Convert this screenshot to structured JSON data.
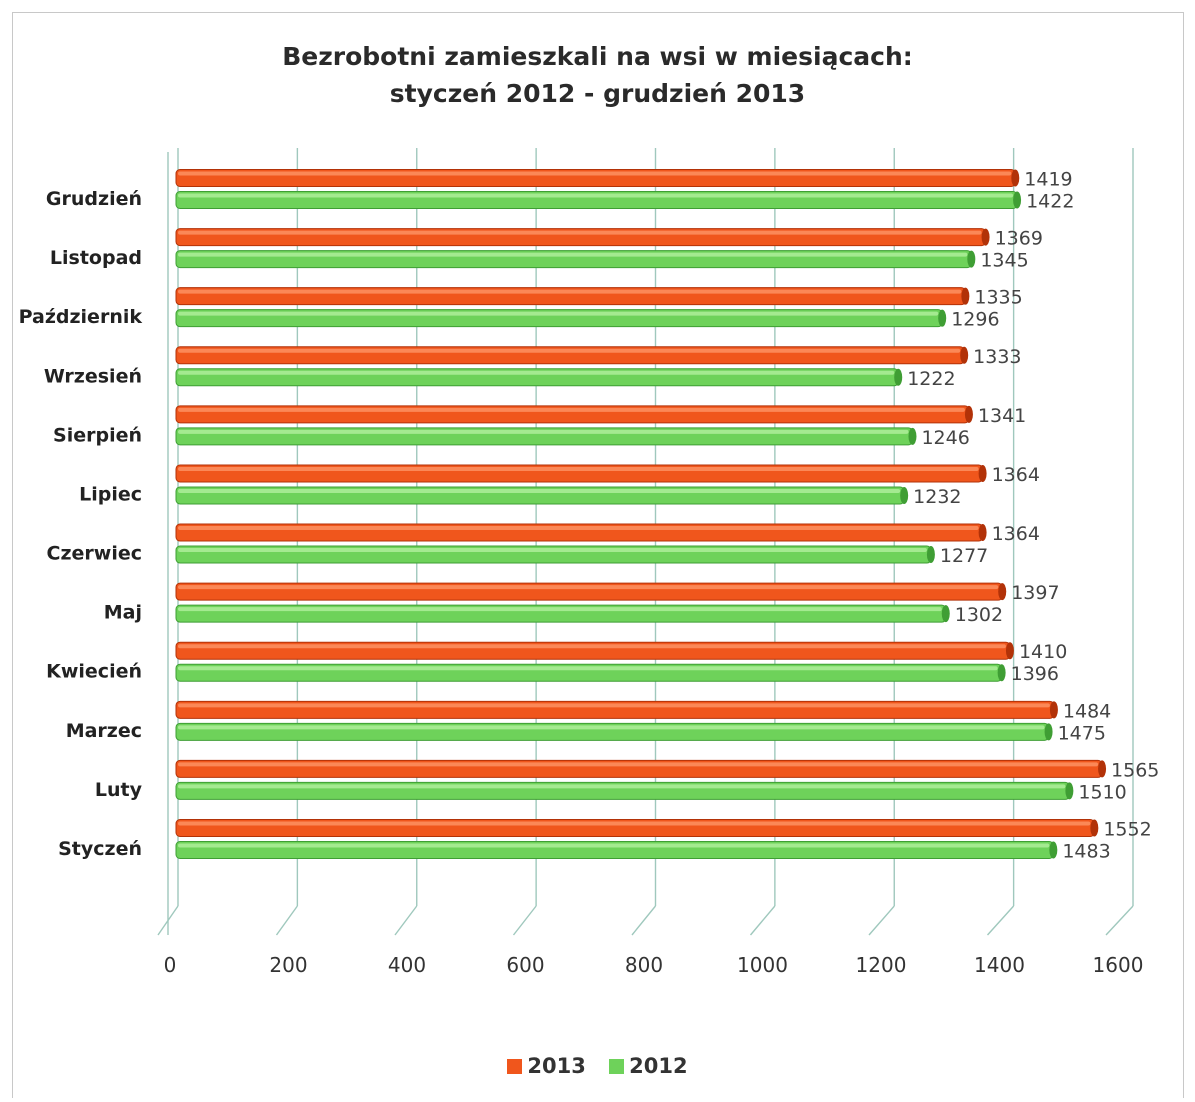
{
  "chart_data": {
    "type": "bar",
    "orientation": "horizontal",
    "title": "Bezrobotni zamieszkali na wsi w miesiącach:",
    "subtitle": "styczeń 2012 - grudzień 2013",
    "categories": [
      "Grudzień",
      "Listopad",
      "Październik",
      "Wrzesień",
      "Sierpień",
      "Lipiec",
      "Czerwiec",
      "Maj",
      "Kwiecień",
      "Marzec",
      "Luty",
      "Styczeń"
    ],
    "series": [
      {
        "name": "2013",
        "color": "#f0561c",
        "values": [
          1419,
          1369,
          1335,
          1333,
          1341,
          1364,
          1364,
          1397,
          1410,
          1484,
          1565,
          1552
        ]
      },
      {
        "name": "2012",
        "color": "#6ed25a",
        "values": [
          1422,
          1345,
          1296,
          1222,
          1246,
          1232,
          1277,
          1302,
          1396,
          1475,
          1510,
          1483
        ]
      }
    ],
    "xticks": [
      "0",
      "200",
      "400",
      "600",
      "800",
      "1000",
      "1200",
      "1400",
      "1600"
    ],
    "xlim": [
      0,
      1600
    ],
    "grid": true,
    "legend_position": "bottom"
  }
}
